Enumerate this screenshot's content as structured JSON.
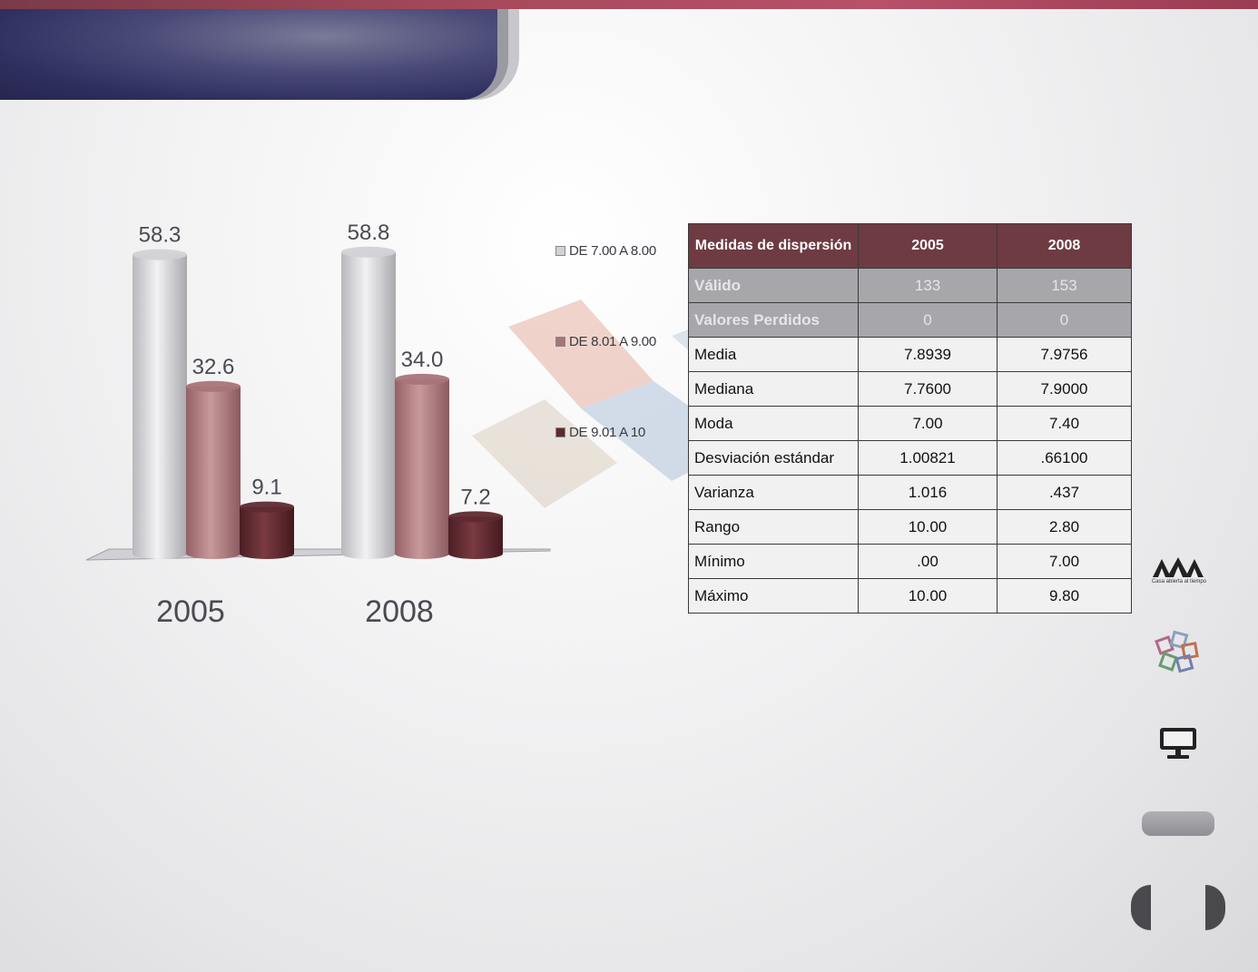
{
  "chart_data": {
    "type": "bar",
    "categories": [
      "2005",
      "2008"
    ],
    "series": [
      {
        "name": "DE 7.00 A 8.00",
        "values": [
          58.3,
          58.8
        ],
        "color": "#d2d2d6"
      },
      {
        "name": "DE 8.01 A 9.00",
        "values": [
          32.6,
          34.0
        ],
        "color": "#a87478"
      },
      {
        "name": "DE 9.01 A 10",
        "values": [
          9.1,
          7.2
        ],
        "color": "#5e2a30"
      }
    ],
    "value_labels": [
      [
        "58.3",
        "58.8"
      ],
      [
        "32.6",
        "34.0"
      ],
      [
        "9.1",
        "7.2"
      ]
    ],
    "style": "3d-cylinder",
    "ylim": [
      0,
      60
    ],
    "legend_position": "right"
  },
  "table": {
    "headers": [
      "Medidas  de dispersión",
      "2005",
      "2008"
    ],
    "rows": [
      {
        "label": "Válido",
        "v2005": "133",
        "v2008": "153"
      },
      {
        "label": "Valores Perdidos",
        "v2005": "0",
        "v2008": "0"
      },
      {
        "label": "Media",
        "v2005": "7.8939",
        "v2008": "7.9756"
      },
      {
        "label": "Mediana",
        "v2005": "7.7600",
        "v2008": "7.9000"
      },
      {
        "label": "Moda",
        "v2005": "7.00",
        "v2008": "7.40"
      },
      {
        "label": "Desviación estándar",
        "v2005": "1.00821",
        "v2008": ".66100"
      },
      {
        "label": "Varianza",
        "v2005": "1.016",
        "v2008": ".437"
      },
      {
        "label": "Rango",
        "v2005": "10.00",
        "v2008": "2.80"
      },
      {
        "label": "Mínimo",
        "v2005": ".00",
        "v2008": "7.00"
      },
      {
        "label": "Máximo",
        "v2005": "10.00",
        "v2008": "9.80"
      }
    ]
  },
  "sidebar": {
    "logo_text": "Casa abierta al tiempo",
    "icons": [
      "uam-logo",
      "squares-logo-icon",
      "monitor-icon"
    ]
  },
  "colors": {
    "header": "#2e2f5e",
    "top_bar": "#a84a5c",
    "table_header": "#6e3b42"
  }
}
